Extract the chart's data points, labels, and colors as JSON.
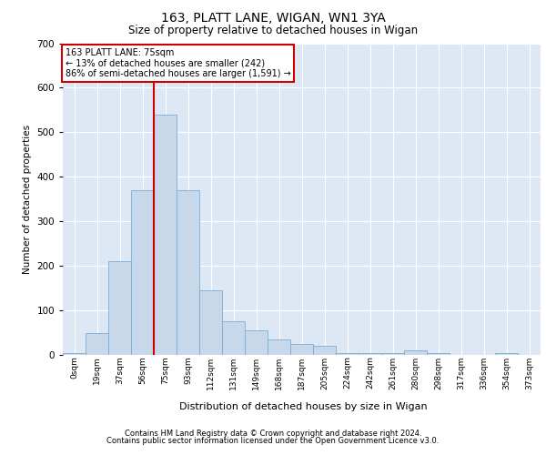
{
  "title1": "163, PLATT LANE, WIGAN, WN1 3YA",
  "title2": "Size of property relative to detached houses in Wigan",
  "xlabel": "Distribution of detached houses by size in Wigan",
  "ylabel": "Number of detached properties",
  "footnote1": "Contains HM Land Registry data © Crown copyright and database right 2024.",
  "footnote2": "Contains public sector information licensed under the Open Government Licence v3.0.",
  "annotation_line1": "163 PLATT LANE: 75sqm",
  "annotation_line2": "← 13% of detached houses are smaller (242)",
  "annotation_line3": "86% of semi-detached houses are larger (1,591) →",
  "bar_color": "#c8d8eb",
  "bar_edge_color": "#7aaed6",
  "red_line_color": "#cc0000",
  "bg_color": "#dde8f4",
  "grid_color": "#ffffff",
  "categories": [
    "0sqm",
    "19sqm",
    "37sqm",
    "56sqm",
    "75sqm",
    "93sqm",
    "112sqm",
    "131sqm",
    "149sqm",
    "168sqm",
    "187sqm",
    "205sqm",
    "224sqm",
    "242sqm",
    "261sqm",
    "280sqm",
    "298sqm",
    "317sqm",
    "336sqm",
    "354sqm",
    "373sqm"
  ],
  "values": [
    5,
    50,
    210,
    370,
    540,
    370,
    145,
    75,
    55,
    35,
    25,
    20,
    5,
    5,
    5,
    10,
    5,
    0,
    0,
    5,
    0
  ],
  "red_line_index": 4,
  "ylim": [
    0,
    700
  ],
  "yticks": [
    0,
    100,
    200,
    300,
    400,
    500,
    600,
    700
  ]
}
